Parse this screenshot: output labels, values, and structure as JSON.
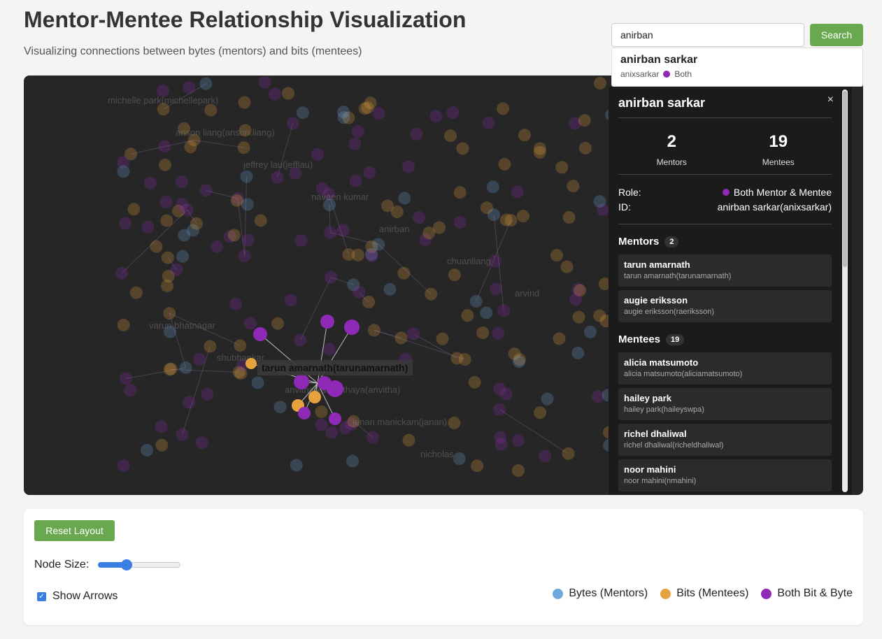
{
  "header": {
    "title": "Mentor-Mentee Relationship Visualization",
    "subtitle": "Visualizing connections between bytes (mentors) and bits (mentees)"
  },
  "search": {
    "value": "anirban",
    "button": "Search",
    "result": {
      "name": "anirban sarkar",
      "username": "anixsarkar",
      "role": "Both"
    }
  },
  "graph": {
    "colors": {
      "bytes": "#6fa8dc",
      "bits": "#e6a23c",
      "both": "#8e2ab5",
      "background": "#262626"
    },
    "faded_labels": [
      "michelle park(michellepark)",
      "anson liang(anson.liang)",
      "jeffrey lau(jefflau)",
      "naveen kumar",
      "anirban",
      "chuanliang",
      "arvind",
      "varun bhatnagar",
      "shubhankar",
      "anvitha kachinthaya(anvitha)",
      "janan manickam(janan)",
      "nicholas"
    ],
    "highlight_label": "tarun amarnath(tarunamarnath)"
  },
  "details": {
    "close": "×",
    "name": "anirban sarkar",
    "mentors_count": "2",
    "mentors_label": "Mentors",
    "mentees_count": "19",
    "mentees_label": "Mentees",
    "role_label": "Role:",
    "role_value": "Both Mentor & Mentee",
    "id_label": "ID:",
    "id_value": "anirban sarkar(anixsarkar)",
    "mentors_heading": "Mentors",
    "mentees_heading": "Mentees",
    "mentors": [
      {
        "name": "tarun amarnath",
        "sub": "tarun amarnath(tarunamarnath)"
      },
      {
        "name": "augie eriksson",
        "sub": "augie eriksson(raeriksson)"
      }
    ],
    "mentees": [
      {
        "name": "alicia matsumoto",
        "sub": "alicia matsumoto(aliciamatsumoto)"
      },
      {
        "name": "hailey park",
        "sub": "hailey park(haileyswpa)"
      },
      {
        "name": "richel dhaliwal",
        "sub": "richel dhaliwal(richeldhaliwal)"
      },
      {
        "name": "noor mahini",
        "sub": "noor mahini(nmahini)"
      }
    ]
  },
  "controls": {
    "reset": "Reset Layout",
    "node_size_label": "Node Size:",
    "node_size_value": 0.35,
    "show_arrows_label": "Show Arrows",
    "show_arrows": true,
    "legend": [
      {
        "label": "Bytes (Mentors)",
        "color": "#6fa8dc"
      },
      {
        "label": "Bits (Mentees)",
        "color": "#e6a23c"
      },
      {
        "label": "Both Bit & Byte",
        "color": "#8e2ab5"
      }
    ]
  }
}
